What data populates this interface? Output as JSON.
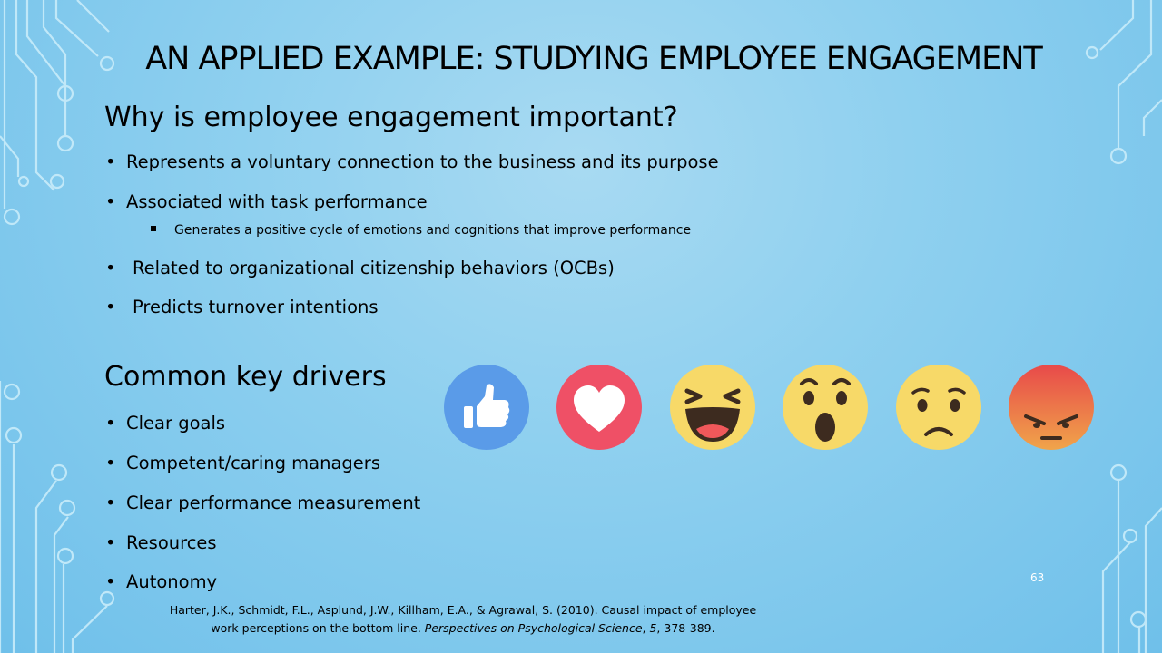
{
  "slide": {
    "title": "AN APPLIED EXAMPLE: STUDYING EMPLOYEE ENGAGEMENT",
    "section1": {
      "heading": "Why is employee engagement important?",
      "bullets": [
        "Represents a voluntary connection to the business and its purpose",
        "Associated with task performance",
        "Related to organizational citizenship behaviors (OCBs)",
        "Predicts turnover intentions"
      ],
      "sub_bullet": "Generates a positive cycle of emotions and cognitions that improve performance"
    },
    "section2": {
      "heading": "Common key drivers",
      "bullets": [
        "Clear goals",
        "Competent/caring managers",
        "Clear performance measurement",
        "Resources",
        "Autonomy"
      ]
    },
    "bullet_glyph": "•",
    "reactions": [
      "like-icon",
      "love-icon",
      "haha-icon",
      "wow-icon",
      "sad-icon",
      "angry-icon"
    ],
    "page_number": "63",
    "citation": {
      "authors": "Harter, J.K., Schmidt, F.L., Asplund, J.W., Killham, E.A., & Agrawal, S. (2010). Causal impact of employee",
      "line2_start": "work perceptions on the bottom line. ",
      "journal": "Perspectives on Psychological Science",
      "sep": ", ",
      "volume": "5",
      "pages": ", 378-389."
    },
    "colors": {
      "background": "#8fd0ef",
      "circuit": "#c8ecfa",
      "like": "#5a9be8",
      "love": "#ef5066",
      "emoji_yellow": "#f7d968",
      "angry_top": "#e84a4a",
      "angry_bottom": "#f0a44a"
    }
  }
}
